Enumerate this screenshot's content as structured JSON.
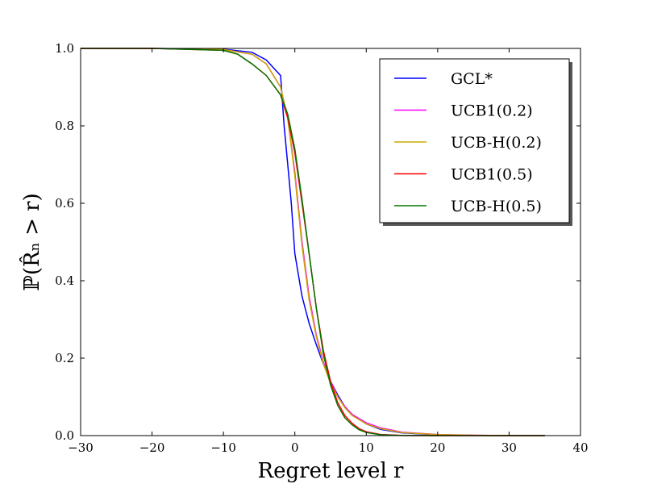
{
  "chart_data": {
    "type": "line",
    "title": "",
    "xlabel": "Regret level r",
    "ylabel": "ℙ(R̂ₙ > r)",
    "xlim": [
      -30,
      40
    ],
    "ylim": [
      0.0,
      1.0
    ],
    "x_ticks": [
      "−30",
      "−20",
      "−10",
      "0",
      "10",
      "20",
      "30",
      "40"
    ],
    "y_ticks": [
      "0.0",
      "0.2",
      "0.4",
      "0.6",
      "0.8",
      "1.0"
    ],
    "grid": false,
    "legend_position": "upper-right",
    "series": [
      {
        "name": "GCL*",
        "color": "#0000ff",
        "x": [
          -30,
          -20,
          -10,
          -6,
          -4,
          -3,
          -2,
          -1.5,
          -1,
          -0.5,
          0,
          1,
          2,
          3,
          4,
          5,
          6,
          7,
          8,
          10,
          12,
          15,
          20,
          25,
          30,
          35
        ],
        "y": [
          1.0,
          1.0,
          0.998,
          0.99,
          0.97,
          0.95,
          0.93,
          0.8,
          0.7,
          0.6,
          0.47,
          0.36,
          0.29,
          0.235,
          0.185,
          0.14,
          0.105,
          0.075,
          0.055,
          0.03,
          0.016,
          0.007,
          0.002,
          0.0005,
          0.0,
          0.0
        ]
      },
      {
        "name": "UCB1(0.2)",
        "color": "#ff00ff",
        "x": [
          -30,
          -20,
          -10,
          -6,
          -4,
          -2,
          -1,
          0,
          1,
          2,
          3,
          4,
          5,
          6,
          7,
          8,
          10,
          12,
          15,
          20,
          25,
          30,
          35
        ],
        "y": [
          1.0,
          1.0,
          0.997,
          0.985,
          0.96,
          0.9,
          0.82,
          0.68,
          0.5,
          0.36,
          0.26,
          0.19,
          0.14,
          0.1,
          0.075,
          0.055,
          0.033,
          0.02,
          0.009,
          0.003,
          0.001,
          0.0,
          0.0
        ]
      },
      {
        "name": "UCB-H(0.2)",
        "color": "#ccaa00",
        "x": [
          -30,
          -20,
          -10,
          -6,
          -4,
          -2,
          -1,
          0,
          1,
          2,
          3,
          4,
          5,
          6,
          7,
          8,
          10,
          12,
          15,
          20,
          25,
          30,
          35
        ],
        "y": [
          1.0,
          1.0,
          0.997,
          0.985,
          0.96,
          0.9,
          0.82,
          0.67,
          0.49,
          0.35,
          0.255,
          0.185,
          0.135,
          0.1,
          0.072,
          0.052,
          0.03,
          0.018,
          0.008,
          0.0025,
          0.0008,
          0.0,
          0.0
        ]
      },
      {
        "name": "UCB1(0.5)",
        "color": "#ff0000",
        "x": [
          -30,
          -20,
          -10,
          -8,
          -6,
          -4,
          -2,
          -1,
          0,
          1,
          2,
          3,
          4,
          5,
          6,
          7,
          8,
          9,
          10,
          12,
          15,
          20,
          25,
          30,
          35
        ],
        "y": [
          1.0,
          1.0,
          0.995,
          0.985,
          0.96,
          0.93,
          0.88,
          0.82,
          0.73,
          0.6,
          0.47,
          0.33,
          0.22,
          0.14,
          0.085,
          0.052,
          0.032,
          0.018,
          0.01,
          0.003,
          0.0005,
          0.0,
          0.0,
          0.0,
          0.0
        ]
      },
      {
        "name": "UCB-H(0.5)",
        "color": "#007700",
        "x": [
          -30,
          -20,
          -10,
          -8,
          -6,
          -4,
          -2,
          -1,
          0,
          1,
          2,
          3,
          4,
          5,
          6,
          7,
          8,
          9,
          10,
          12,
          15,
          20,
          25,
          30,
          35
        ],
        "y": [
          1.0,
          1.0,
          0.995,
          0.985,
          0.96,
          0.93,
          0.88,
          0.83,
          0.74,
          0.61,
          0.47,
          0.33,
          0.21,
          0.13,
          0.078,
          0.046,
          0.028,
          0.015,
          0.008,
          0.002,
          0.0003,
          0.0,
          0.0,
          0.0,
          0.0
        ]
      }
    ]
  }
}
